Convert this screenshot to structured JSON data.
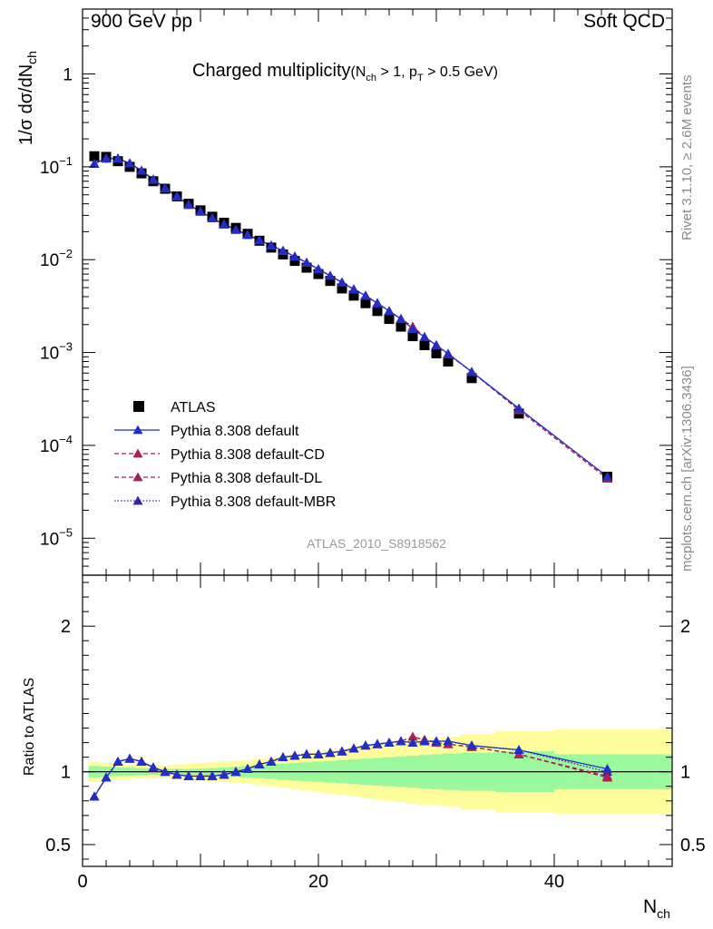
{
  "header": {
    "left": "900 GeV pp",
    "right": "Soft QCD",
    "plot_title": "Charged multiplicity",
    "title_cut_open": "(N",
    "title_cut_sub1": "ch",
    "title_cut_mid": " > 1, p",
    "title_cut_sub2": "T",
    "title_cut_end": " > 0.5 GeV)"
  },
  "side_labels": {
    "rivet": "Rivet 3.1.10, ≥ 2.6M events",
    "mcplots": "mcplots.cern.ch [arXiv:1306.3436]"
  },
  "analysis_label": "ATLAS_2010_S8918562",
  "axes": {
    "y_label_main": "1/σ dσ/dN",
    "y_label_main_sub": "ch",
    "y_label_ratio": "Ratio to ATLAS",
    "x_label": "N",
    "x_label_sub": "ch"
  },
  "legend": [
    {
      "label": "ATLAS",
      "color": "#000000",
      "style": "marker-square"
    },
    {
      "label": "Pythia 8.308 default",
      "color": "#1f2fcc",
      "style": "solid"
    },
    {
      "label": "Pythia 8.308 default-CD",
      "color": "#b0204a",
      "style": "dashed"
    },
    {
      "label": "Pythia 8.308 default-DL",
      "color": "#a0205f",
      "style": "dashed"
    },
    {
      "label": "Pythia 8.308 default-MBR",
      "color": "#3a1fa8",
      "style": "dotted"
    }
  ],
  "chart_data": [
    {
      "type": "scatter",
      "panel": "main",
      "yscale": "log",
      "xlim": [
        0,
        50
      ],
      "ylim": [
        4e-06,
        5
      ],
      "x_ticks": [
        0,
        20,
        40
      ],
      "y_ticks": [
        {
          "value": 1e-05,
          "base": "10",
          "exp": "−5"
        },
        {
          "value": 0.0001,
          "base": "10",
          "exp": "−4"
        },
        {
          "value": 0.001,
          "base": "10",
          "exp": "−3"
        },
        {
          "value": 0.01,
          "base": "10",
          "exp": "−2"
        },
        {
          "value": 0.1,
          "base": "10",
          "exp": "−1"
        },
        {
          "value": 1,
          "base": "1",
          "exp": ""
        }
      ],
      "x": [
        1,
        2,
        3,
        4,
        5,
        6,
        7,
        8,
        9,
        10,
        11,
        12,
        13,
        14,
        15,
        16,
        17,
        18,
        19,
        20,
        21,
        22,
        23,
        24,
        25,
        26,
        27,
        28,
        29,
        30,
        31,
        33,
        37,
        44.5
      ],
      "series": [
        {
          "name": "ATLAS",
          "values": [
            0.13,
            0.128,
            0.115,
            0.1,
            0.085,
            0.07,
            0.058,
            0.048,
            0.04,
            0.034,
            0.029,
            0.025,
            0.022,
            0.019,
            0.016,
            0.0135,
            0.0114,
            0.0097,
            0.0082,
            0.007,
            0.0059,
            0.0049,
            0.0041,
            0.0034,
            0.0028,
            0.0023,
            0.0019,
            0.0015,
            0.0012,
            0.00098,
            0.0008,
            0.00053,
            0.00022,
            4.6e-05
          ]
        },
        {
          "name": "Pythia 8.308 default",
          "values": [
            0.108,
            0.123,
            0.123,
            0.109,
            0.091,
            0.073,
            0.059,
            0.048,
            0.039,
            0.033,
            0.028,
            0.024,
            0.021,
            0.0185,
            0.0162,
            0.0142,
            0.0125,
            0.0108,
            0.0093,
            0.0079,
            0.0067,
            0.0057,
            0.0048,
            0.0041,
            0.0034,
            0.0028,
            0.0023,
            0.0018,
            0.00147,
            0.0012,
            0.00097,
            0.00062,
            0.00025,
            4.6e-05
          ]
        },
        {
          "name": "Pythia 8.308 default-CD",
          "values": [
            0.108,
            0.123,
            0.123,
            0.109,
            0.091,
            0.073,
            0.059,
            0.048,
            0.039,
            0.033,
            0.028,
            0.024,
            0.021,
            0.0185,
            0.0162,
            0.0142,
            0.0125,
            0.0108,
            0.0093,
            0.0079,
            0.0067,
            0.0057,
            0.0048,
            0.0041,
            0.0034,
            0.0028,
            0.0023,
            0.0019,
            0.00147,
            0.0012,
            0.00096,
            0.00062,
            0.00024,
            4.4e-05
          ]
        },
        {
          "name": "Pythia 8.308 default-DL",
          "values": [
            0.108,
            0.123,
            0.123,
            0.109,
            0.091,
            0.073,
            0.059,
            0.048,
            0.039,
            0.033,
            0.028,
            0.024,
            0.021,
            0.0185,
            0.0162,
            0.0142,
            0.0125,
            0.0108,
            0.0093,
            0.0079,
            0.0067,
            0.0057,
            0.0048,
            0.0041,
            0.0034,
            0.0028,
            0.0023,
            0.0019,
            0.00147,
            0.0012,
            0.00096,
            0.00062,
            0.00024,
            4.4e-05
          ]
        },
        {
          "name": "Pythia 8.308 default-MBR",
          "values": [
            0.108,
            0.123,
            0.123,
            0.109,
            0.091,
            0.073,
            0.059,
            0.048,
            0.039,
            0.033,
            0.028,
            0.024,
            0.021,
            0.0185,
            0.0162,
            0.0142,
            0.0125,
            0.0108,
            0.0093,
            0.0079,
            0.0067,
            0.0057,
            0.0048,
            0.0041,
            0.0034,
            0.0028,
            0.0023,
            0.0018,
            0.00147,
            0.0012,
            0.00097,
            0.00062,
            0.00025,
            4.6e-05
          ]
        }
      ]
    },
    {
      "type": "scatter",
      "panel": "ratio",
      "xlim": [
        0,
        50
      ],
      "ylim": [
        0.35,
        2.35
      ],
      "x_ticks": [
        0,
        20,
        40
      ],
      "y_ticks": [
        0.5,
        1,
        2
      ],
      "reference_line": 1,
      "bands": {
        "bin_edges": [
          0.5,
          1.5,
          2.5,
          3.5,
          4.5,
          5.5,
          6.5,
          7.5,
          8.5,
          9.5,
          10.5,
          11.5,
          12.5,
          13.5,
          14.5,
          15.5,
          16.5,
          17.5,
          18.5,
          19.5,
          20.5,
          21.5,
          22.5,
          23.5,
          24.5,
          25.5,
          26.5,
          27.5,
          28.5,
          29.5,
          30.5,
          32,
          35,
          40,
          50
        ],
        "inner": [
          0.04,
          0.035,
          0.03,
          0.028,
          0.025,
          0.022,
          0.02,
          0.02,
          0.02,
          0.022,
          0.025,
          0.03,
          0.035,
          0.04,
          0.045,
          0.05,
          0.055,
          0.06,
          0.065,
          0.07,
          0.075,
          0.08,
          0.085,
          0.09,
          0.095,
          0.1,
          0.105,
          0.11,
          0.115,
          0.12,
          0.125,
          0.13,
          0.14,
          0.12
        ],
        "outer": [
          0.07,
          0.06,
          0.055,
          0.05,
          0.045,
          0.045,
          0.045,
          0.05,
          0.055,
          0.06,
          0.065,
          0.07,
          0.075,
          0.08,
          0.09,
          0.1,
          0.11,
          0.12,
          0.13,
          0.14,
          0.15,
          0.16,
          0.17,
          0.18,
          0.19,
          0.2,
          0.21,
          0.22,
          0.23,
          0.23,
          0.24,
          0.26,
          0.28,
          0.29
        ],
        "inner_color": "#9cf89c",
        "outer_color": "#fdfd9c"
      },
      "series": [
        {
          "name": "Pythia 8.308 default",
          "values": [
            0.83,
            0.96,
            1.07,
            1.09,
            1.07,
            1.03,
            1.0,
            0.98,
            0.97,
            0.97,
            0.97,
            0.98,
            1.0,
            1.02,
            1.05,
            1.07,
            1.1,
            1.11,
            1.12,
            1.12,
            1.13,
            1.14,
            1.16,
            1.18,
            1.19,
            1.2,
            1.21,
            1.2,
            1.21,
            1.21,
            1.21,
            1.18,
            1.15,
            1.02
          ]
        },
        {
          "name": "Pythia 8.308 default-CD",
          "values": [
            0.83,
            0.96,
            1.07,
            1.09,
            1.07,
            1.03,
            1.0,
            0.98,
            0.97,
            0.97,
            0.97,
            0.98,
            1.0,
            1.02,
            1.05,
            1.07,
            1.1,
            1.11,
            1.12,
            1.12,
            1.13,
            1.14,
            1.16,
            1.18,
            1.19,
            1.2,
            1.21,
            1.24,
            1.22,
            1.2,
            1.19,
            1.17,
            1.12,
            0.96
          ]
        },
        {
          "name": "Pythia 8.308 default-DL",
          "values": [
            0.83,
            0.96,
            1.07,
            1.09,
            1.07,
            1.03,
            1.0,
            0.98,
            0.97,
            0.97,
            0.97,
            0.98,
            1.0,
            1.02,
            1.05,
            1.07,
            1.1,
            1.11,
            1.12,
            1.12,
            1.13,
            1.14,
            1.16,
            1.18,
            1.19,
            1.2,
            1.21,
            1.24,
            1.22,
            1.2,
            1.19,
            1.17,
            1.12,
            0.97
          ]
        },
        {
          "name": "Pythia 8.308 default-MBR",
          "values": [
            0.83,
            0.96,
            1.07,
            1.09,
            1.07,
            1.03,
            1.0,
            0.98,
            0.97,
            0.97,
            0.97,
            0.98,
            1.0,
            1.02,
            1.05,
            1.07,
            1.1,
            1.11,
            1.12,
            1.12,
            1.13,
            1.14,
            1.16,
            1.18,
            1.19,
            1.2,
            1.21,
            1.2,
            1.21,
            1.21,
            1.21,
            1.18,
            1.15,
            1.0
          ]
        }
      ]
    }
  ]
}
